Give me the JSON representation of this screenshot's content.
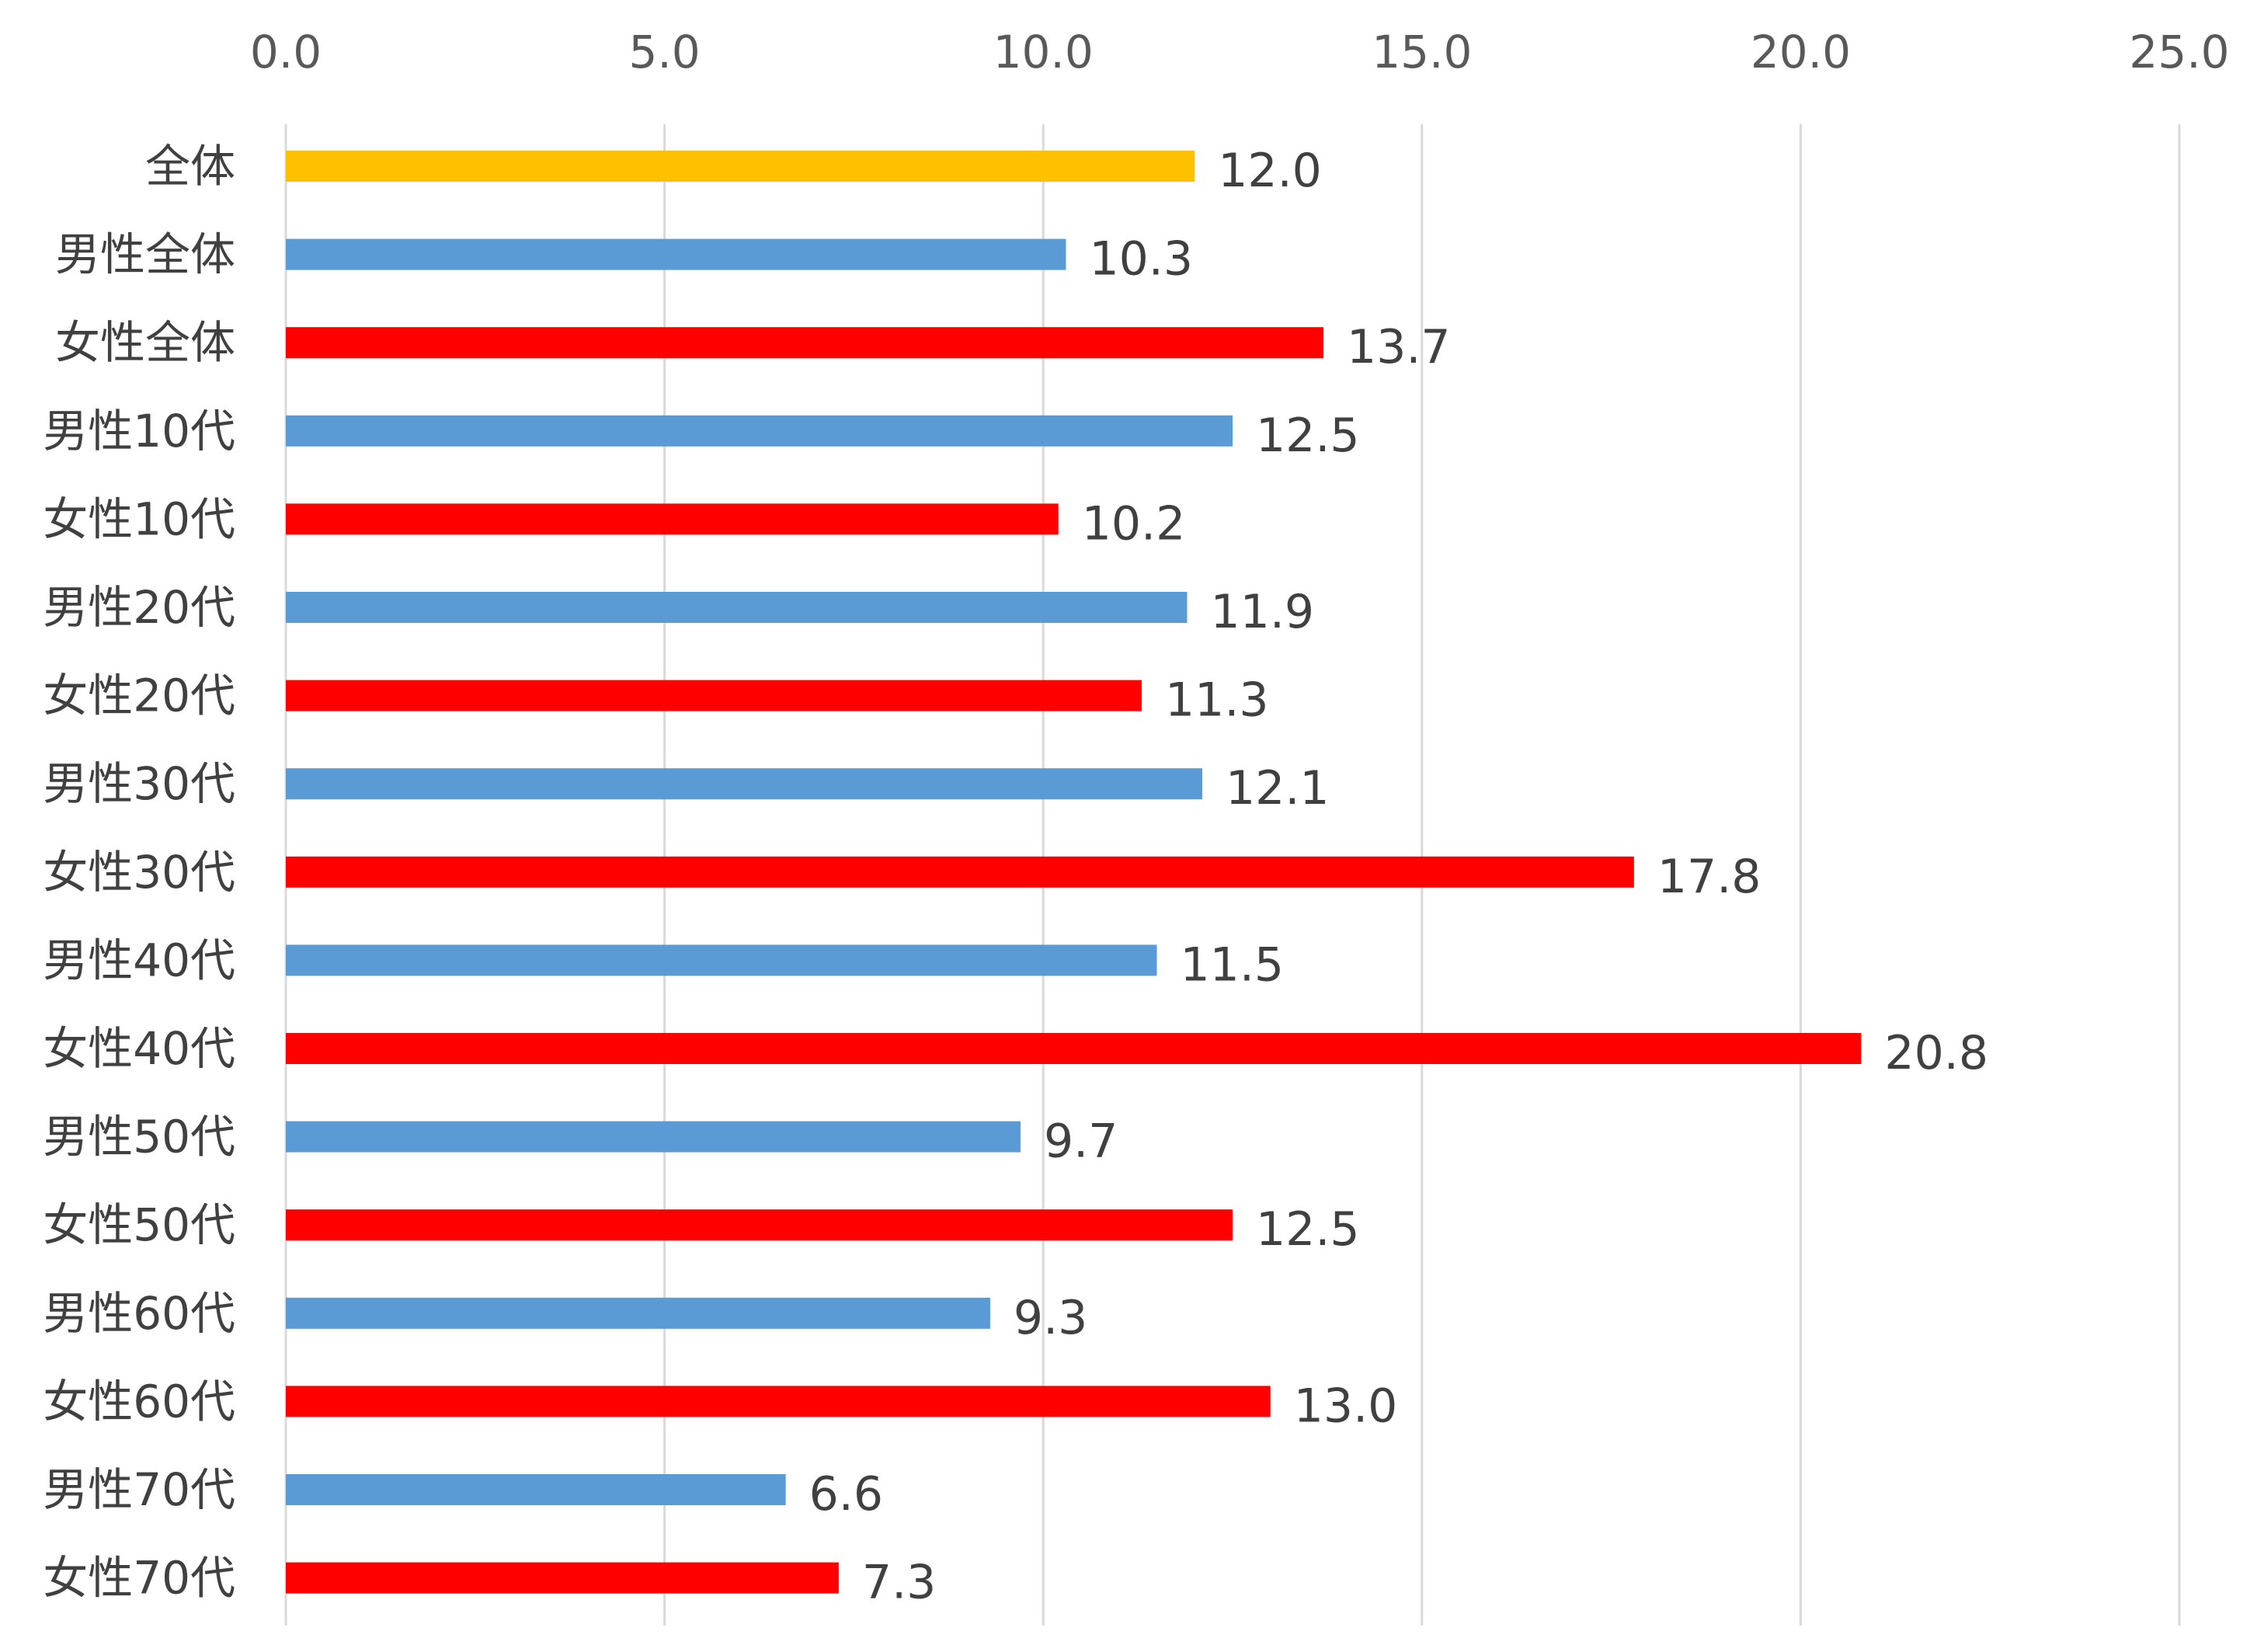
{
  "chart_data": {
    "type": "bar",
    "orientation": "horizontal",
    "title": "",
    "xlabel": "",
    "ylabel": "",
    "xlim": [
      0,
      25
    ],
    "x_ticks": [
      "0.0",
      "5.0",
      "10.0",
      "15.0",
      "20.0",
      "25.0"
    ],
    "x_axis_position": "top",
    "grid": true,
    "legend": "none",
    "colors": {
      "overall": "#FFC000",
      "male": "#5B9BD5",
      "female": "#FF0000",
      "gridline": "#D9D9D9",
      "text": "#404040"
    },
    "categories": [
      "全体",
      "男性全体",
      "女性全体",
      "男性10代",
      "女性10代",
      "男性20代",
      "女性20代",
      "男性30代",
      "女性30代",
      "男性40代",
      "女性40代",
      "男性50代",
      "女性50代",
      "男性60代",
      "女性60代",
      "男性70代",
      "女性70代"
    ],
    "values": [
      12.0,
      10.3,
      13.7,
      12.5,
      10.2,
      11.9,
      11.3,
      12.1,
      17.8,
      11.5,
      20.8,
      9.7,
      12.5,
      9.3,
      13.0,
      6.6,
      7.3
    ],
    "value_labels": [
      "12.0",
      "10.3",
      "13.7",
      "12.5",
      "10.2",
      "11.9",
      "11.3",
      "12.1",
      "17.8",
      "11.5",
      "20.8",
      "9.7",
      "12.5",
      "9.3",
      "13.0",
      "6.6",
      "7.3"
    ],
    "bar_groups": [
      "overall",
      "male",
      "female",
      "male",
      "female",
      "male",
      "female",
      "male",
      "female",
      "male",
      "female",
      "male",
      "female",
      "male",
      "female",
      "male",
      "female"
    ]
  }
}
